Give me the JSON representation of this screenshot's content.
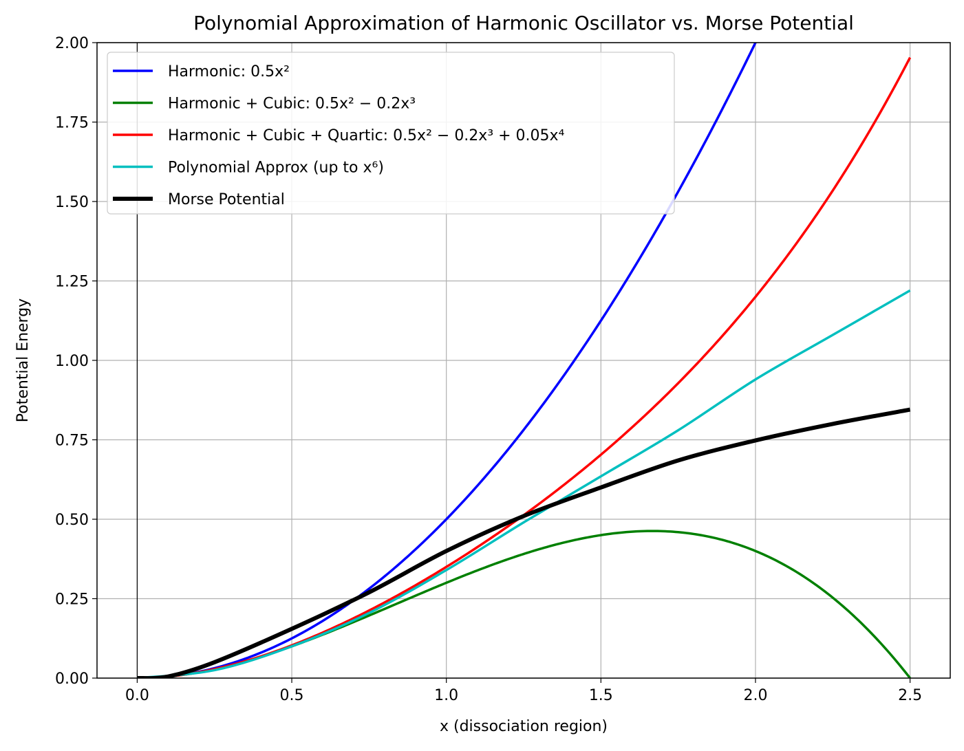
{
  "chart_data": {
    "type": "line",
    "title": "Polynomial Approximation of Harmonic Oscillator vs. Morse Potential",
    "xlabel": "x (dissociation region)",
    "ylabel": "Potential Energy",
    "xlim": [
      -0.13,
      2.63
    ],
    "ylim": [
      0,
      2.0
    ],
    "xticks": [
      "0.0",
      "0.5",
      "1.0",
      "1.5",
      "2.0",
      "2.5"
    ],
    "yticks": [
      "0.00",
      "0.25",
      "0.50",
      "0.75",
      "1.00",
      "1.25",
      "1.50",
      "1.75",
      "2.00"
    ],
    "grid": true,
    "legend_position": "upper-left",
    "reference_line": {
      "x": 0
    },
    "x_range": [
      0,
      2.5
    ],
    "series": [
      {
        "name": "Harmonic: 0.5x²",
        "color": "#0000ff",
        "coefficients": [
          0,
          0,
          0.5
        ]
      },
      {
        "name": "Harmonic + Cubic: 0.5x² − 0.2x³",
        "color": "#008000",
        "coefficients": [
          0,
          0,
          0.5,
          -0.2
        ]
      },
      {
        "name": "Harmonic + Cubic + Quartic: 0.5x² − 0.2x³ + 0.05x⁴",
        "color": "#ff0000",
        "coefficients": [
          0,
          0,
          0.5,
          -0.2,
          0.05
        ]
      },
      {
        "name": "Polynomial Approx (up to x⁶)",
        "color": "#00bfbf",
        "points": [
          [
            0,
            0
          ],
          [
            0.25,
            0.025
          ],
          [
            0.5,
            0.1
          ],
          [
            0.75,
            0.205
          ],
          [
            1.0,
            0.34
          ],
          [
            1.25,
            0.49
          ],
          [
            1.5,
            0.635
          ],
          [
            1.75,
            0.78
          ],
          [
            2.0,
            0.94
          ],
          [
            2.25,
            1.08
          ],
          [
            2.5,
            1.22
          ]
        ]
      },
      {
        "name": "Morse Potential",
        "color": "#000000",
        "points": [
          [
            0,
            0
          ],
          [
            0.1,
            0.005
          ],
          [
            0.25,
            0.05
          ],
          [
            0.5,
            0.155
          ],
          [
            0.75,
            0.27
          ],
          [
            1.0,
            0.4
          ],
          [
            1.25,
            0.51
          ],
          [
            1.5,
            0.6
          ],
          [
            1.75,
            0.685
          ],
          [
            2.0,
            0.748
          ],
          [
            2.25,
            0.8
          ],
          [
            2.5,
            0.845
          ]
        ]
      }
    ]
  }
}
